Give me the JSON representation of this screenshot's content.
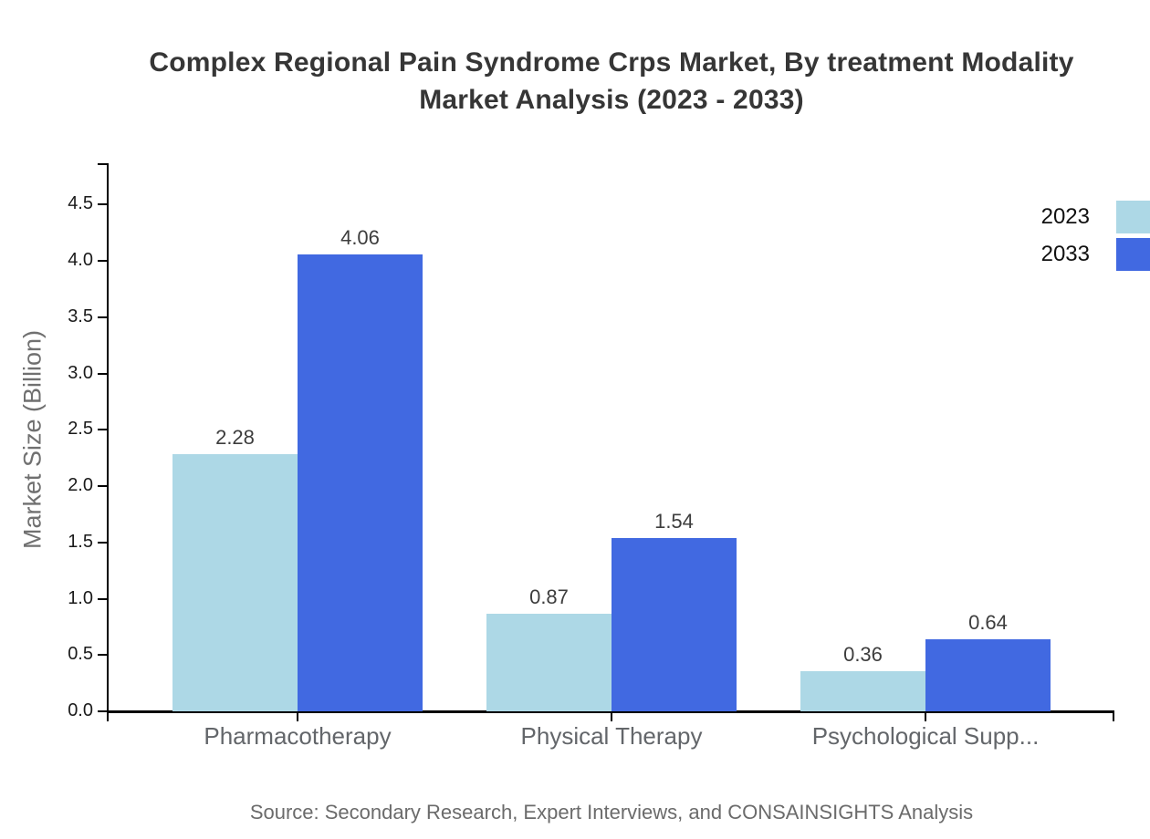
{
  "chart_data": {
    "type": "bar",
    "title_lines": [
      "Complex Regional Pain Syndrome Crps Market, By treatment Modality",
      "Market Analysis (2023 - 2033)"
    ],
    "ylabel": "Market Size (Billion)",
    "categories": [
      "Pharmacotherapy",
      "Physical Therapy",
      "Psychological Supp..."
    ],
    "series": [
      {
        "name": "2023",
        "color": "#add8e6",
        "values": [
          2.28,
          0.87,
          0.36
        ]
      },
      {
        "name": "2033",
        "color": "#4169e1",
        "values": [
          4.06,
          1.54,
          0.64
        ]
      }
    ],
    "value_labels": [
      [
        "2.28",
        "0.87",
        "0.36"
      ],
      [
        "4.06",
        "1.54",
        "0.64"
      ]
    ],
    "ytick_labels": [
      "0.0",
      "0.5",
      "1.0",
      "1.5",
      "2.0",
      "2.5",
      "3.0",
      "3.5",
      "4.0",
      "4.5"
    ],
    "yticks": [
      0.0,
      0.5,
      1.0,
      1.5,
      2.0,
      2.5,
      3.0,
      3.5,
      4.0,
      4.5
    ],
    "ylim": [
      0,
      4.87
    ],
    "grid": false,
    "legend_position": "top-right",
    "source": "Source: Secondary Research, Expert Interviews, and CONSAINSIGHTS Analysis"
  }
}
